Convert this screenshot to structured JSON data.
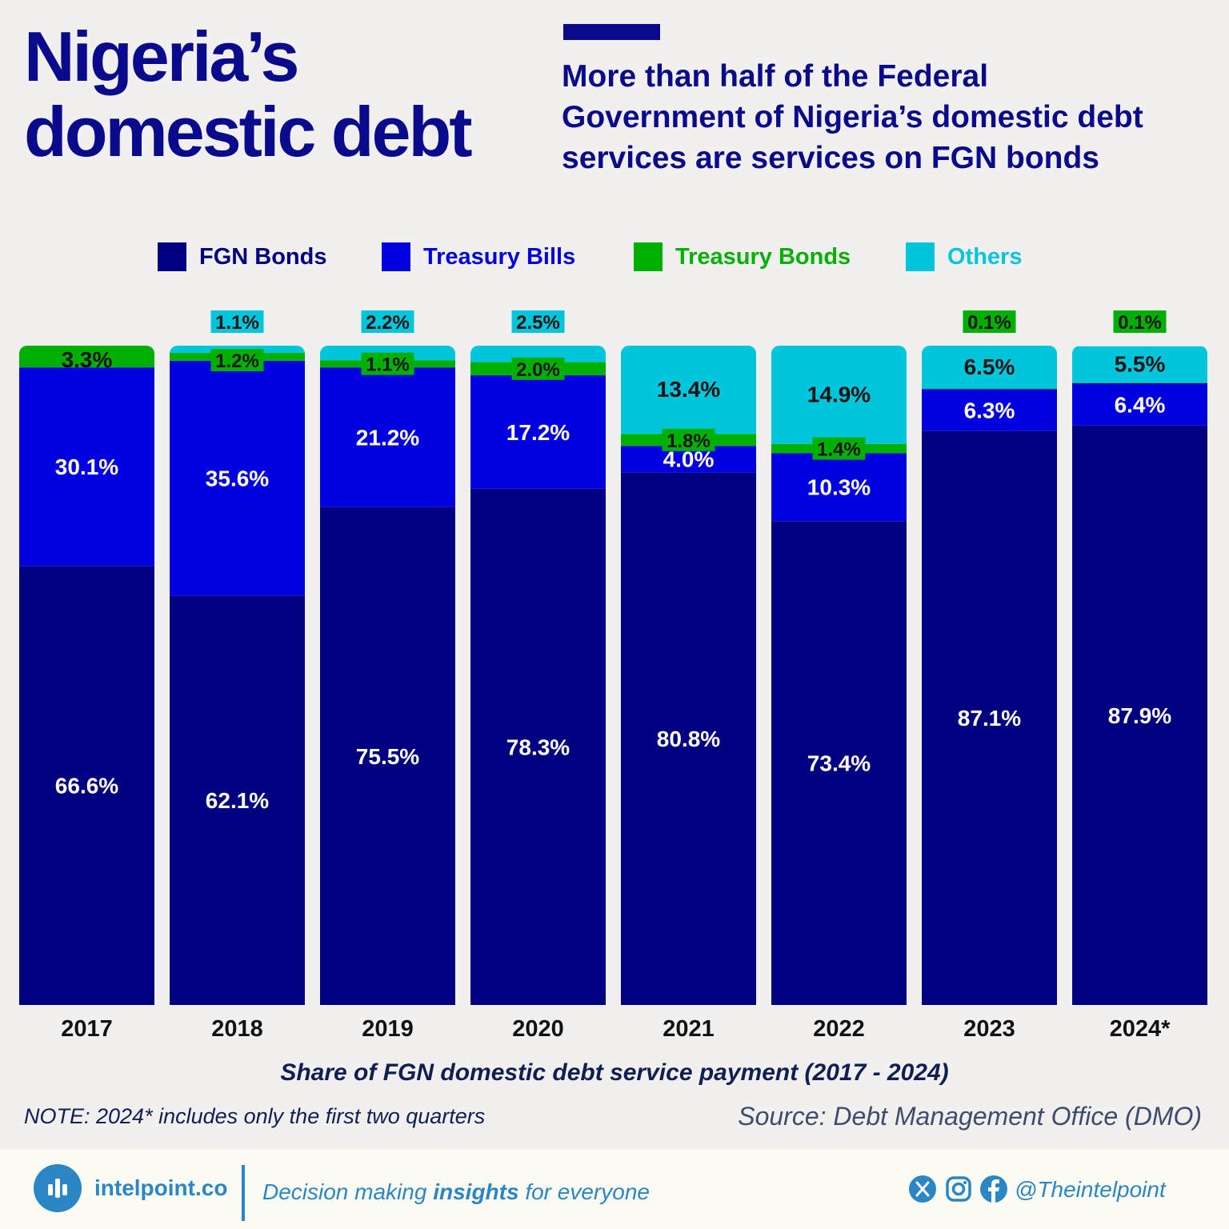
{
  "header": {
    "title_line1": "Nigeria’s",
    "title_line2": "domestic debt",
    "subtitle_line1": "More than half of the Federal",
    "subtitle_line2": "Government of Nigeria’s domestic debt",
    "subtitle_line3": "services are services on FGN bonds"
  },
  "legend": [
    {
      "label": "FGN Bonds",
      "color": "#000080"
    },
    {
      "label": "Treasury Bills",
      "color": "#0000e0"
    },
    {
      "label": "Treasury Bonds",
      "color": "#00b000"
    },
    {
      "label": "Others",
      "color": "#00c6dc"
    }
  ],
  "chart_data": {
    "type": "bar",
    "stacked": true,
    "categories": [
      "2017",
      "2018",
      "2019",
      "2020",
      "2021",
      "2022",
      "2023",
      "2024*"
    ],
    "series": [
      {
        "name": "FGN Bonds",
        "color": "#000080",
        "values": [
          66.6,
          62.1,
          75.5,
          78.3,
          80.8,
          73.4,
          87.1,
          87.9
        ],
        "labels": [
          "66.6%",
          "62.1%",
          "75.5%",
          "78.3%",
          "80.8%",
          "73.4%",
          "87.1%",
          "87.9%"
        ]
      },
      {
        "name": "Treasury Bills",
        "color": "#0000e0",
        "values": [
          30.1,
          35.6,
          21.2,
          17.2,
          4.0,
          10.3,
          6.3,
          6.4
        ],
        "labels": [
          "30.1%",
          "35.6%",
          "21.2%",
          "17.2%",
          "4.0%",
          "10.3%",
          "6.3%",
          "6.4%"
        ]
      },
      {
        "name": "Treasury Bonds",
        "color": "#00b000",
        "values": [
          3.3,
          1.2,
          1.1,
          2.0,
          1.8,
          1.4,
          0.1,
          0.1
        ],
        "labels": [
          "3.3%",
          "1.2%",
          "1.1%",
          "2.0%",
          "1.8%",
          "1.4%",
          "0.1%",
          "0.1%"
        ]
      },
      {
        "name": "Others",
        "color": "#00c6dc",
        "values": [
          0,
          1.1,
          2.2,
          2.5,
          13.4,
          14.9,
          6.5,
          5.5
        ],
        "labels": [
          "",
          "1.1%",
          "2.2%",
          "2.5%",
          "13.4%",
          "14.9%",
          "6.5%",
          "5.5%"
        ]
      }
    ],
    "ylim": [
      0,
      100
    ],
    "grid": false,
    "legend_position": "top",
    "xlabel": "Share of FGN domestic debt service payment (2017 - 2024)",
    "ylabel": ""
  },
  "footer": {
    "note": "NOTE: 2024* includes only the first two quarters",
    "source": "Source: Debt Management Office (DMO)",
    "brand": "intelpoint.co",
    "tagline_pre": "Decision making ",
    "tagline_bold": "insights",
    "tagline_post": " for everyone",
    "handle": "@Theintelpoint",
    "brand_color": "#2b86c5"
  }
}
